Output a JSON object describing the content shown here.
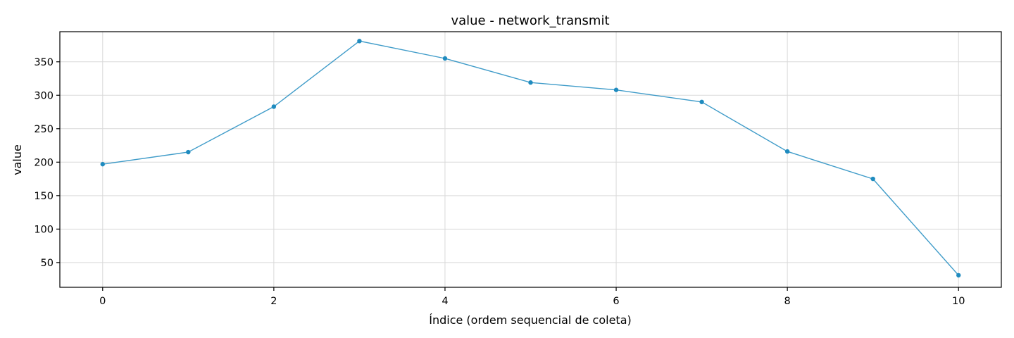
{
  "chart_data": {
    "type": "line",
    "title": "value - network_transmit",
    "xlabel": "Índice (ordem sequencial de coleta)",
    "ylabel": "value",
    "x": [
      0,
      1,
      2,
      3,
      4,
      5,
      6,
      7,
      8,
      9,
      10
    ],
    "series": [
      {
        "values": [
          197,
          215,
          283,
          381,
          355,
          319,
          308,
          290,
          216,
          175,
          31
        ],
        "color": "#1f8bbf"
      }
    ],
    "xlim": [
      -0.5,
      10.5
    ],
    "ylim": [
      13,
      395
    ],
    "xticks": [
      0,
      2,
      4,
      6,
      8,
      10
    ],
    "yticks": [
      50,
      100,
      150,
      200,
      250,
      300,
      350
    ],
    "grid": true
  }
}
